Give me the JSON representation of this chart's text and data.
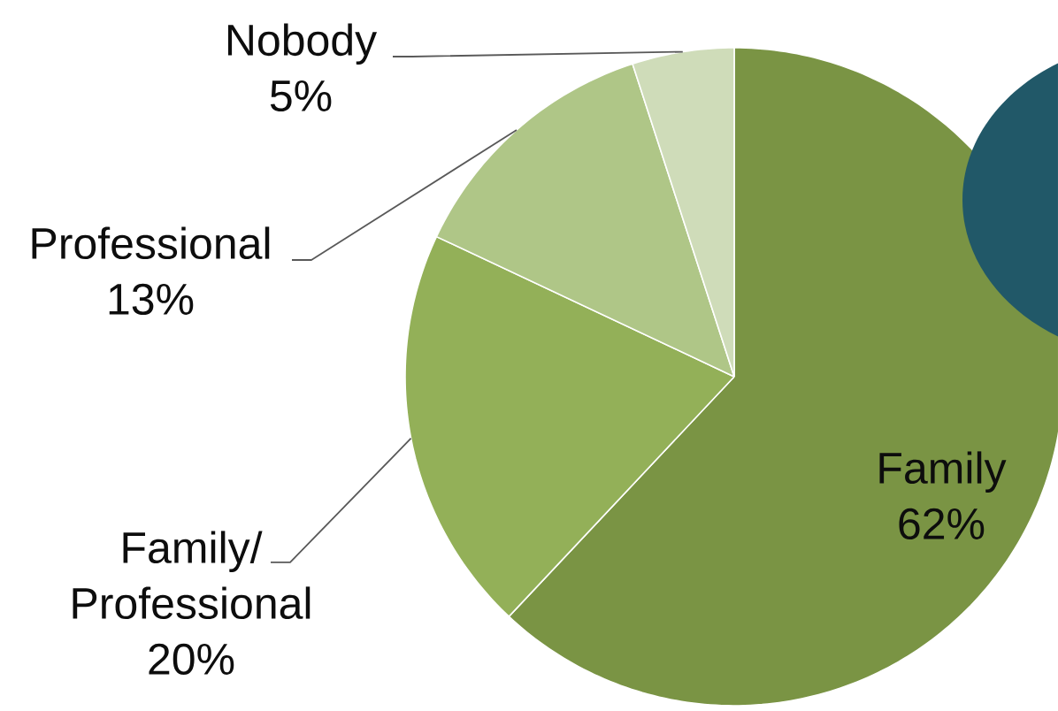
{
  "chart_data": {
    "type": "pie",
    "categories": [
      "Family",
      "Family/Professional",
      "Professional",
      "Nobody"
    ],
    "values": [
      62,
      20,
      13,
      5
    ],
    "colors": [
      "#7a9444",
      "#93b058",
      "#afc687",
      "#cfdcb9"
    ],
    "value_labels": [
      "62%",
      "20%",
      "13%",
      "5%"
    ]
  }
}
